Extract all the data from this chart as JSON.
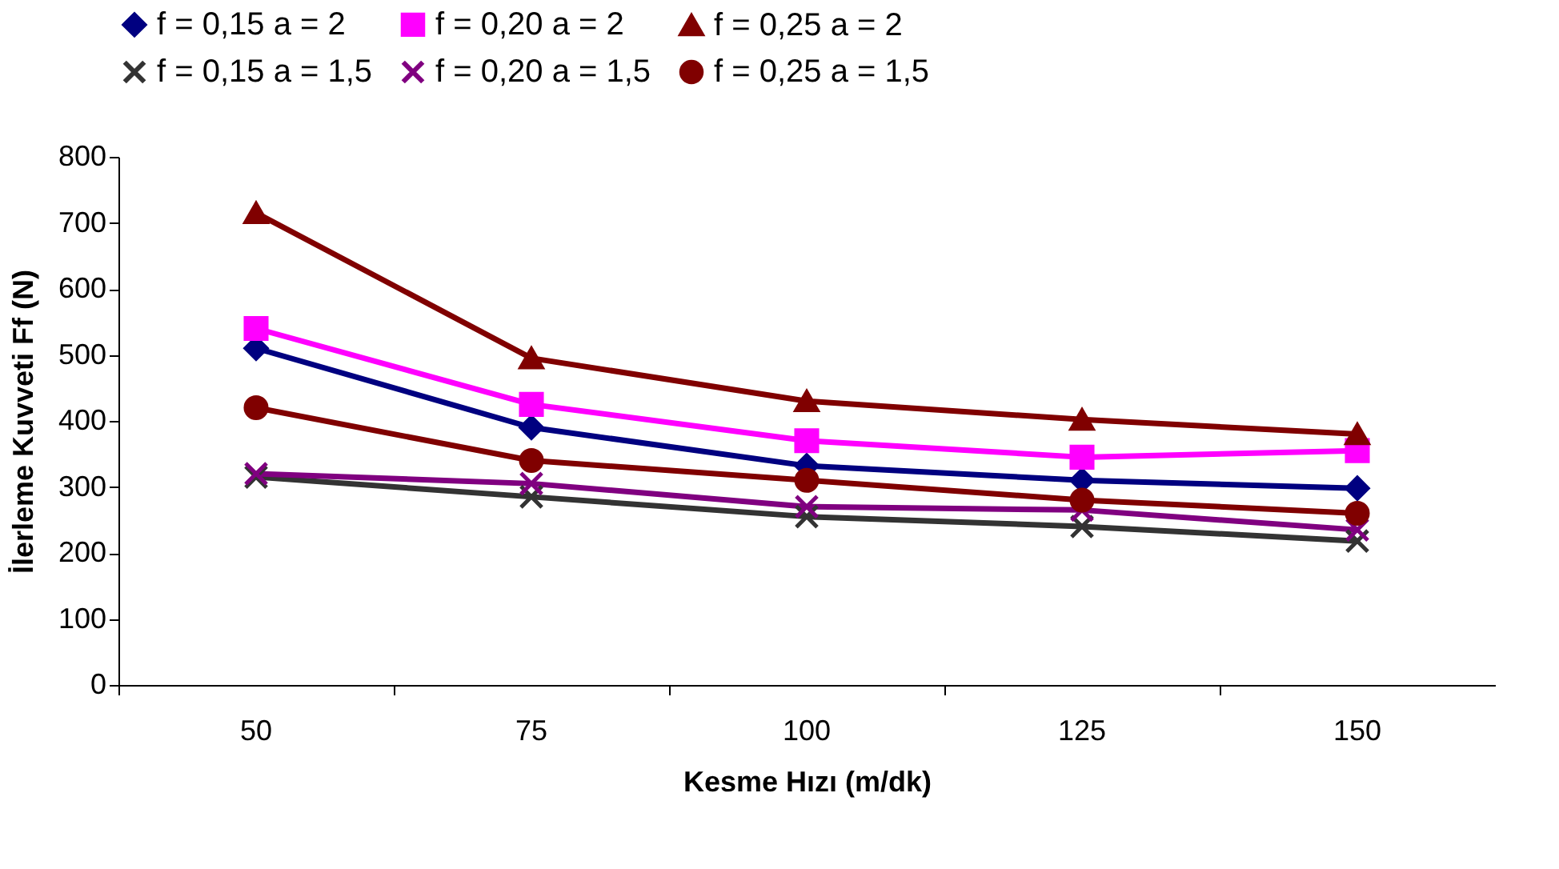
{
  "chart_data": {
    "type": "line",
    "xlabel": "Kesme Hızı (m/dk)",
    "ylabel": "İlerleme Kuvveti Ff (N)",
    "categories": [
      "50",
      "75",
      "100",
      "125",
      "150"
    ],
    "ylim": [
      0,
      800
    ],
    "yticks": [
      0,
      100,
      200,
      300,
      400,
      500,
      600,
      700,
      800
    ],
    "grid": false,
    "legend": "top",
    "series": [
      {
        "name": "f = 0,15 a = 2",
        "color": "#000080",
        "marker": "diamond",
        "values": [
          510,
          390,
          332,
          310,
          298
        ]
      },
      {
        "name": "f = 0,20 a = 2",
        "color": "#ff00ff",
        "marker": "square",
        "values": [
          540,
          425,
          370,
          345,
          355
        ]
      },
      {
        "name": "f = 0,25 a = 2",
        "color": "#800000",
        "marker": "triangle",
        "values": [
          715,
          495,
          430,
          402,
          380
        ]
      },
      {
        "name": "f = 0,15 a = 1,5",
        "color": "#333333",
        "marker": "cross",
        "values": [
          315,
          285,
          255,
          240,
          218
        ]
      },
      {
        "name": "f = 0,20 a = 1,5",
        "color": "#800080",
        "marker": "cross",
        "values": [
          320,
          305,
          270,
          265,
          235
        ]
      },
      {
        "name": "f = 0,25 a = 1,5",
        "color": "#800000",
        "marker": "circle",
        "values": [
          420,
          340,
          310,
          280,
          260
        ]
      }
    ]
  }
}
